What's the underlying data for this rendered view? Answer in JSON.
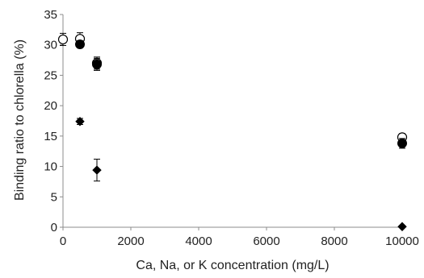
{
  "chart_data": {
    "type": "scatter",
    "title": "",
    "xlabel": "Ca, Na, or K concentration (mg/L)",
    "ylabel": "Binding ratio to chlorella (%)",
    "xlim": [
      0,
      10000
    ],
    "ylim": [
      0,
      35
    ],
    "x_ticks": [
      0,
      2000,
      4000,
      6000,
      8000,
      10000
    ],
    "y_ticks": [
      0,
      5,
      10,
      15,
      20,
      25,
      30,
      35
    ],
    "grid": false,
    "legend": "none",
    "series": [
      {
        "marker": "open-circle",
        "color": "#000000",
        "points": [
          {
            "x": 0,
            "y": 30.9,
            "err": 1.0
          },
          {
            "x": 500,
            "y": 31.0,
            "err": 1.0
          },
          {
            "x": 1000,
            "y": 27.0,
            "err": 1.0
          },
          {
            "x": 10000,
            "y": 14.8,
            "err": 0.6
          }
        ]
      },
      {
        "marker": "filled-circle",
        "color": "#000000",
        "points": [
          {
            "x": 500,
            "y": 30.1,
            "err": 0.6
          },
          {
            "x": 1000,
            "y": 26.8,
            "err": 1.0
          },
          {
            "x": 10000,
            "y": 13.8,
            "err": 0.8
          }
        ]
      },
      {
        "marker": "filled-diamond",
        "color": "#000000",
        "points": [
          {
            "x": 500,
            "y": 17.4,
            "err": 0.5
          },
          {
            "x": 1000,
            "y": 9.4,
            "err": 1.8
          },
          {
            "x": 10000,
            "y": 0.1,
            "err": 0
          }
        ]
      }
    ]
  }
}
